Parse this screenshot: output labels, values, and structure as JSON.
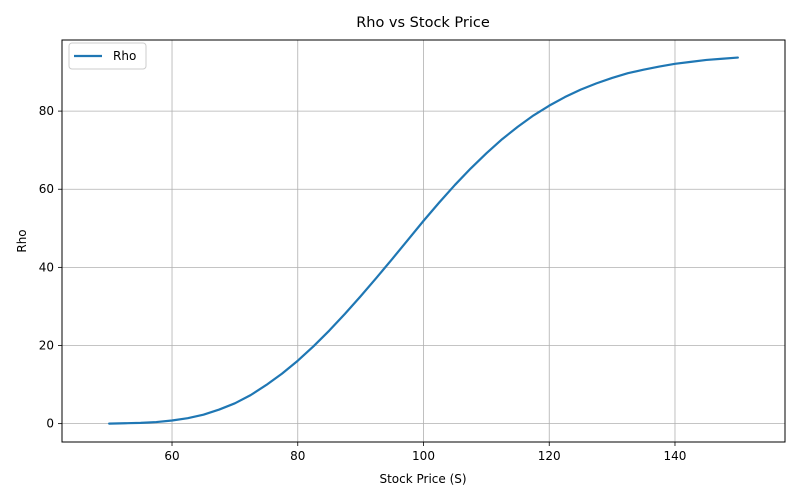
{
  "chart_data": {
    "type": "line",
    "title": "Rho vs Stock Price",
    "xlabel": "Stock Price (S)",
    "ylabel": "Rho",
    "xlim": [
      42.5,
      157.5
    ],
    "ylim": [
      -4.7,
      98.2
    ],
    "xticks": [
      60,
      80,
      100,
      120,
      140
    ],
    "yticks": [
      0,
      20,
      40,
      60,
      80
    ],
    "grid": true,
    "legend_position": "upper-left",
    "series": [
      {
        "name": "Rho",
        "color": "#1f77b4",
        "x": [
          50,
          52.5,
          55,
          57.5,
          60,
          62.5,
          65,
          67.5,
          70,
          72.5,
          75,
          77.5,
          80,
          82.5,
          85,
          87.5,
          90,
          92.5,
          95,
          97.5,
          100,
          102.5,
          105,
          107.5,
          110,
          112.5,
          115,
          117.5,
          120,
          122.5,
          125,
          127.5,
          130,
          132.5,
          135,
          137.5,
          140,
          142.5,
          145,
          147.5,
          150
        ],
        "y": [
          0.0,
          0.1,
          0.2,
          0.4,
          0.8,
          1.4,
          2.3,
          3.6,
          5.2,
          7.3,
          9.9,
          12.8,
          16.1,
          19.8,
          23.8,
          28.1,
          32.6,
          37.3,
          42.1,
          47.0,
          51.9,
          56.6,
          61.1,
          65.3,
          69.2,
          72.8,
          76.0,
          78.9,
          81.4,
          83.6,
          85.5,
          87.1,
          88.5,
          89.7,
          90.6,
          91.4,
          92.1,
          92.6,
          93.1,
          93.4,
          93.7
        ]
      }
    ]
  }
}
